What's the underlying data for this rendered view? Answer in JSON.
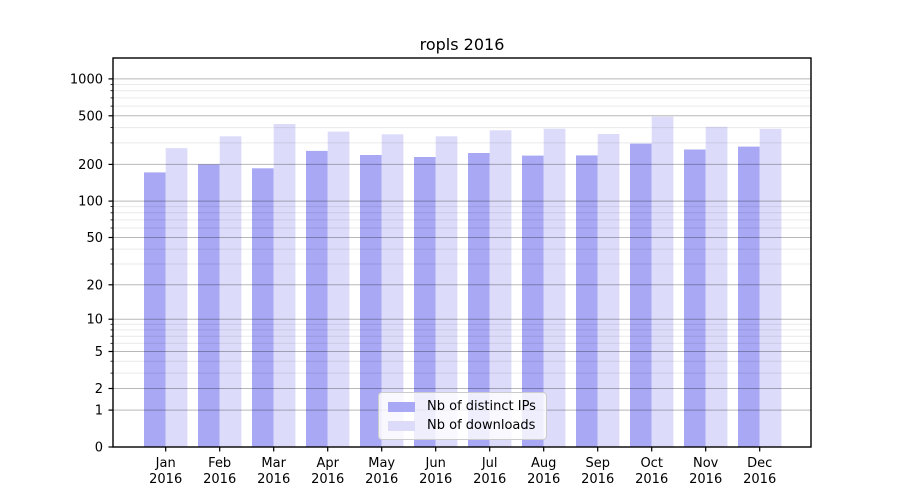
{
  "chart_data": {
    "type": "bar",
    "title": "ropls 2016",
    "categories": [
      "Jan",
      "Feb",
      "Mar",
      "Apr",
      "May",
      "Jun",
      "Jul",
      "Aug",
      "Sep",
      "Oct",
      "Nov",
      "Dec"
    ],
    "category_year": "2016",
    "series": [
      {
        "name": "Nb of distinct IPs",
        "color": "#a8a8f5",
        "values": [
          172,
          200,
          186,
          258,
          239,
          230,
          248,
          236,
          237,
          296,
          265,
          280
        ]
      },
      {
        "name": "Nb of downloads",
        "color": "#dcdcfa",
        "values": [
          272,
          340,
          428,
          371,
          353,
          340,
          380,
          392,
          355,
          492,
          406,
          391
        ]
      }
    ],
    "yscale": "log1p",
    "ylim": [
      0,
      1480
    ],
    "yticks": [
      0,
      1,
      2,
      5,
      10,
      20,
      50,
      100,
      200,
      500,
      1000
    ],
    "yticks_minor": [
      3,
      4,
      6,
      7,
      8,
      9,
      30,
      40,
      60,
      70,
      80,
      90,
      300,
      400,
      600,
      700,
      800,
      900
    ],
    "grid": true,
    "legend_position": "lower-center",
    "colors": {
      "major_grid": "rgba(0,0,0,0.28)",
      "minor_grid": "rgba(0,0,0,0.085)",
      "axes": "#000000",
      "legend_border": "#cccccc"
    }
  }
}
